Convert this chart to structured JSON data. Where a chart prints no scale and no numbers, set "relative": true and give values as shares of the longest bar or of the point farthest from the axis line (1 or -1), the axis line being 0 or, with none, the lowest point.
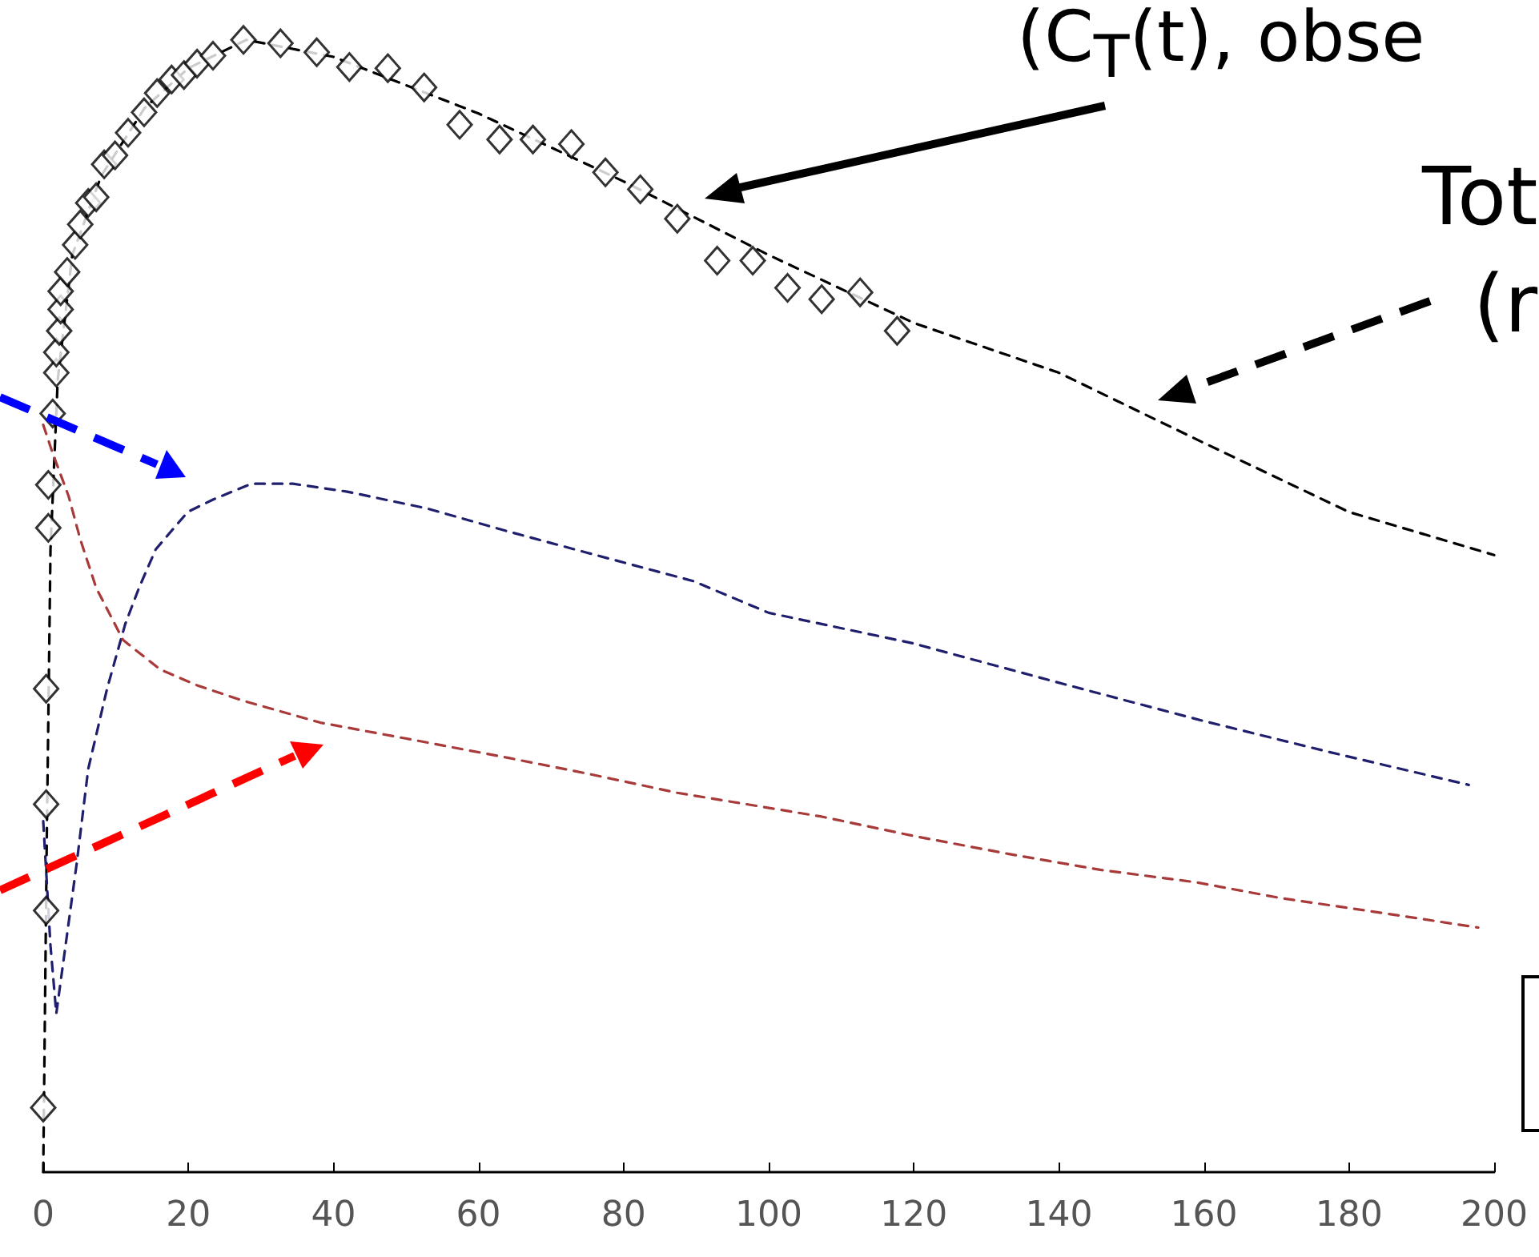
{
  "chart_data": {
    "type": "line",
    "relative": true,
    "xlim": [
      0,
      200
    ],
    "xticks": [
      0,
      20,
      40,
      60,
      80,
      100,
      120,
      140,
      160,
      180,
      200
    ],
    "annotations": [
      "(C$_{T}$(t), obse",
      "Tot",
      "(r"
    ],
    "series": [
      {
        "type": "scatter",
        "marker": "diamond",
        "color": "#000000",
        "x": [
          0,
          0.4,
          0.4,
          0.4,
          0.7,
          0.7,
          1.3,
          1.8,
          1.8,
          2.2,
          2.4,
          2.4,
          3.3,
          4.4,
          5.1,
          6.2,
          7.3,
          8.4,
          9.9,
          11.7,
          13.9,
          15.7,
          17.7,
          19.4,
          21.2,
          23.4,
          27.6,
          32.7,
          37.7,
          42.2,
          47.5,
          52.5,
          57.4,
          62.9,
          67.5,
          72.8,
          77.5,
          82.3,
          87.4,
          92.9,
          97.8,
          102.6,
          107.3,
          112.6,
          117.7
        ],
        "values": [
          0.057,
          0.231,
          0.325,
          0.427,
          0.569,
          0.607,
          0.67,
          0.706,
          0.724,
          0.743,
          0.762,
          0.778,
          0.795,
          0.819,
          0.837,
          0.856,
          0.861,
          0.89,
          0.898,
          0.918,
          0.936,
          0.953,
          0.965,
          0.969,
          0.979,
          0.986,
          1.0,
          0.997,
          0.989,
          0.976,
          0.975,
          0.958,
          0.925,
          0.912,
          0.912,
          0.908,
          0.883,
          0.868,
          0.842,
          0.805,
          0.805,
          0.781,
          0.771,
          0.777,
          0.743
        ]
      },
      {
        "line_style": "dashed",
        "marker": "none",
        "color": "#000000",
        "x": [
          0,
          0.5,
          1,
          2,
          4,
          8,
          14,
          20,
          28,
          40,
          60,
          80,
          100,
          120,
          140,
          160,
          180,
          200
        ],
        "values": [
          0,
          0.3,
          0.55,
          0.7,
          0.81,
          0.88,
          0.94,
          0.975,
          1.0,
          0.985,
          0.935,
          0.875,
          0.81,
          0.75,
          0.706,
          0.644,
          0.583,
          0.545
        ]
      },
      {
        "line_style": "dashed",
        "marker": "none",
        "color": "#1f1f6e",
        "x": [
          0,
          1,
          1.8,
          4.6,
          6.2,
          8.8,
          11.3,
          13.2,
          15.5,
          19.9,
          23.4,
          28.7,
          34.4,
          41.9,
          53,
          64,
          75,
          89.6,
          100,
          119.9,
          141.3,
          159.6,
          177.3,
          196.5
        ],
        "values": [
          0.31,
          0.2,
          0.14,
          0.272,
          0.356,
          0.427,
          0.484,
          0.516,
          0.55,
          0.583,
          0.594,
          0.608,
          0.608,
          0.601,
          0.586,
          0.566,
          0.547,
          0.522,
          0.494,
          0.467,
          0.43,
          0.399,
          0.371,
          0.342
        ]
      },
      {
        "line_style": "dashed",
        "marker": "none",
        "color": "#a83a3a",
        "x": [
          0,
          1.3,
          3.5,
          5.1,
          7.3,
          11,
          16.1,
          21.2,
          27.2,
          38.2,
          50.8,
          64,
          75,
          87.4,
          107.3,
          119.9,
          133.1,
          145.7,
          158.9,
          170.6,
          184.5,
          197.8
        ],
        "values": [
          0.66,
          0.635,
          0.597,
          0.559,
          0.516,
          0.47,
          0.444,
          0.43,
          0.417,
          0.397,
          0.382,
          0.366,
          0.352,
          0.335,
          0.314,
          0.297,
          0.281,
          0.267,
          0.256,
          0.242,
          0.229,
          0.216
        ]
      }
    ]
  }
}
